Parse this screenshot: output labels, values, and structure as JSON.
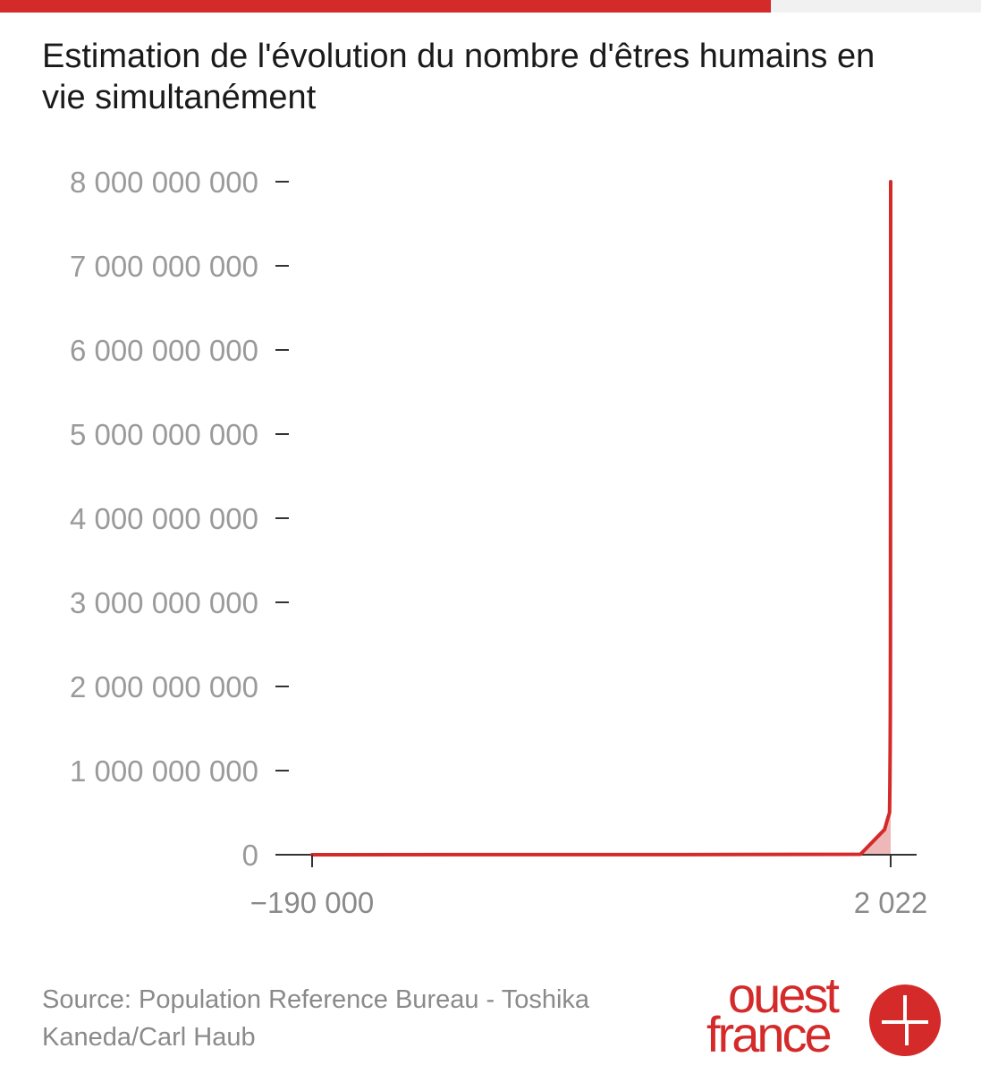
{
  "colors": {
    "accent": "#d42a2a",
    "area_fill": "#efb8b8",
    "tick_text": "#9a9a9a",
    "axis": "#333333"
  },
  "progress": {
    "fraction": 0.786
  },
  "title": "Estimation de l'évolution du nombre d'êtres humains en vie simultanément",
  "source": "Source: Population Reference Bureau - Toshika Kaneda/Carl Haub",
  "logo": {
    "line1": "ouest",
    "line2": "france",
    "icon": "ouest-france-logo-icon"
  },
  "chart_data": {
    "type": "area",
    "title": "Estimation de l'évolution du nombre d'êtres humains en vie simultanément",
    "xlabel": "",
    "ylabel": "",
    "x": [
      -190000,
      -50000,
      -8000,
      1,
      1200,
      1650,
      1750,
      1850,
      1900,
      1950,
      1970,
      1980,
      1990,
      2000,
      2010,
      2022
    ],
    "values": [
      2,
      2000000,
      5000000,
      300000000,
      450000000,
      500000000,
      795000000,
      1265000000,
      1656000000,
      2516000000,
      3700000000,
      4450000000,
      5300000000,
      6100000000,
      6900000000,
      8000000000
    ],
    "xlim": [
      -190000,
      2022
    ],
    "ylim": [
      0,
      8000000000
    ],
    "x_ticks": [
      -190000,
      2022
    ],
    "x_tick_labels": [
      "−190 000",
      "2 022"
    ],
    "y_ticks": [
      0,
      1000000000,
      2000000000,
      3000000000,
      4000000000,
      5000000000,
      6000000000,
      7000000000,
      8000000000
    ],
    "y_tick_labels": [
      "0",
      "1 000 000 000",
      "2 000 000 000",
      "3 000 000 000",
      "4 000 000 000",
      "5 000 000 000",
      "6 000 000 000",
      "7 000 000 000",
      "8 000 000 000"
    ],
    "grid": false,
    "legend": "none"
  }
}
